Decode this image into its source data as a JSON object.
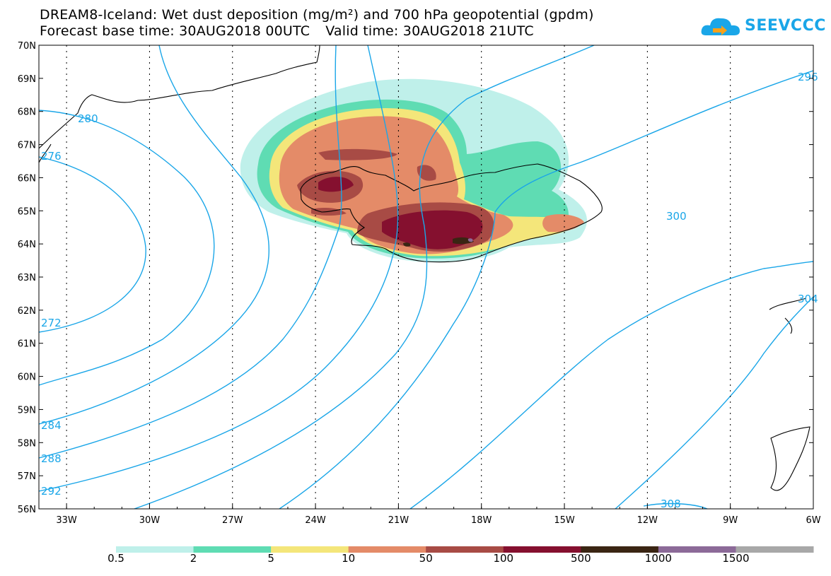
{
  "title": {
    "line1": "DREAM8-Iceland: Wet dust deposition (mg/m²) and 700 hPa geopotential (gpdm)",
    "base_time": "Forecast base time: 30AUG2018 00UTC",
    "valid_time": "Valid time: 30AUG2018 21UTC"
  },
  "logo": {
    "text": "SEEVCCC",
    "icon": "cloud-arrow-icon",
    "color": "#1aa6e8"
  },
  "map": {
    "lat_labels": [
      "70N",
      "69N",
      "68N",
      "67N",
      "66N",
      "65N",
      "64N",
      "63N",
      "62N",
      "61N",
      "60N",
      "59N",
      "58N",
      "57N",
      "56N"
    ],
    "lon_labels": [
      "33W",
      "30W",
      "27W",
      "24W",
      "21W",
      "18W",
      "15W",
      "12W",
      "9W",
      "6W"
    ],
    "contour_color": "#1aa6e8",
    "contour_labels": [
      "280",
      "276",
      "272",
      "284",
      "288",
      "292",
      "296",
      "300",
      "304",
      "308"
    ]
  },
  "colorbar": {
    "colors": [
      "#bff0ea",
      "#5fdcb3",
      "#f4e67a",
      "#e48b68",
      "#a84b45",
      "#85102f",
      "#3a2513",
      "#8c6a98",
      "#a8a8a8"
    ],
    "labels": [
      "0.5",
      "2",
      "5",
      "10",
      "50",
      "100",
      "500",
      "1000",
      "1500"
    ]
  }
}
